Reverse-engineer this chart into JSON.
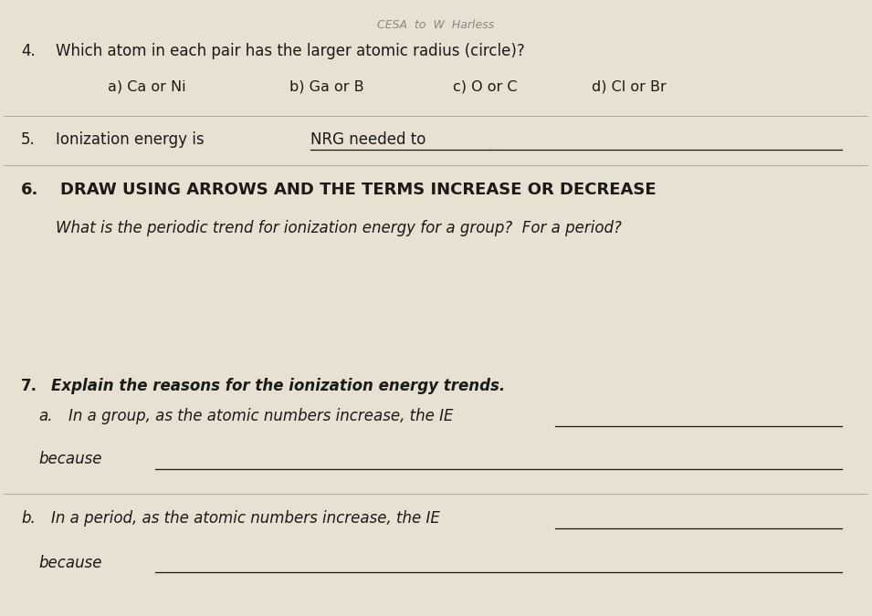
{
  "bg_color": "#e8e0d0",
  "text_color": "#1a1a1a",
  "fig_width": 9.55,
  "fig_height": 6.75,
  "header_text": "CESA  to  W  Harless",
  "q4_label": "4.",
  "q4_text": "Which atom in each pair has the larger atomic radius (circle)?",
  "q4a": "a) Ca or Ni",
  "q4b": "b) Ga or B",
  "q4c": "c) O or C",
  "q4d": "d) Cl or Br",
  "q5_label": "5.",
  "q5_text": "Ionization energy is ",
  "q5_underlined": "NRG needed to",
  "q6_label": "6.",
  "q6_text": "DRAW USING ARROWS AND THE TERMS INCREASE OR DECREASE",
  "q6_sub": "What is the periodic trend for ionization energy for a group?  For a period?",
  "q7_label": "7.",
  "q7_text": "Explain the reasons for the ionization energy trends.",
  "q7a_label": "a.",
  "q7a_text": "In a group, as the atomic numbers increase, the IE",
  "q7a_because": "because",
  "q7b_label": "b.",
  "q7b_text": "In a period, as the atomic numbers increase, the IE",
  "q7b_because": "because"
}
